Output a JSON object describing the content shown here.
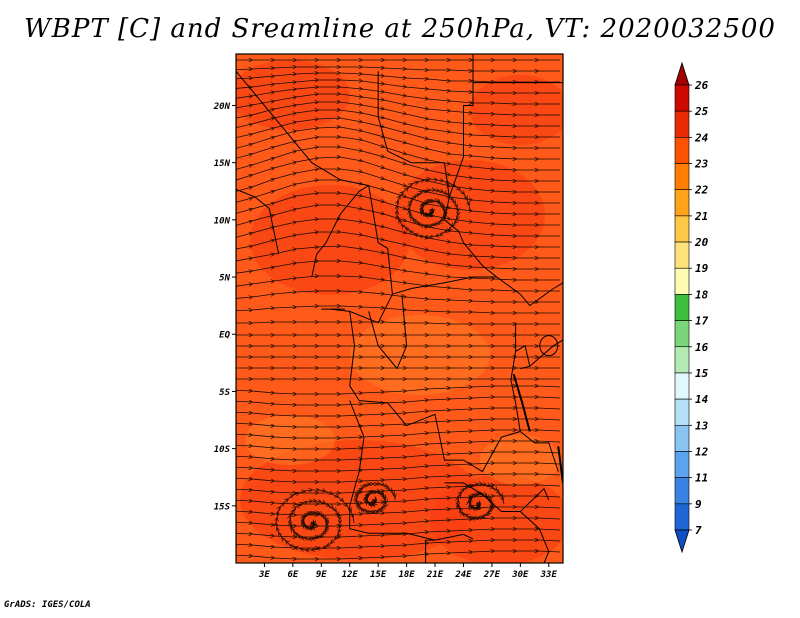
{
  "title": "WBPT [C] and Sreamline at 250hPa, VT: 2020032500",
  "credit": "GrADS: IGES/COLA",
  "map": {
    "lat_labels": [
      {
        "label": "20N",
        "lat": 20
      },
      {
        "label": "15N",
        "lat": 15
      },
      {
        "label": "10N",
        "lat": 10
      },
      {
        "label": "5N",
        "lat": 5
      },
      {
        "label": "EQ",
        "lat": 0
      },
      {
        "label": "5S",
        "lat": -5
      },
      {
        "label": "10S",
        "lat": -10
      },
      {
        "label": "15S",
        "lat": -15
      }
    ],
    "lon_labels": [
      {
        "label": "3E",
        "lon": 3
      },
      {
        "label": "6E",
        "lon": 6
      },
      {
        "label": "9E",
        "lon": 9
      },
      {
        "label": "12E",
        "lon": 12
      },
      {
        "label": "15E",
        "lon": 15
      },
      {
        "label": "18E",
        "lon": 18
      },
      {
        "label": "21E",
        "lon": 21
      },
      {
        "label": "24E",
        "lon": 24
      },
      {
        "label": "27E",
        "lon": 27
      },
      {
        "label": "30E",
        "lon": 30
      },
      {
        "label": "33E",
        "lon": 33
      }
    ],
    "lon_range": [
      0,
      34.5
    ],
    "lat_range": [
      -20,
      24.5
    ],
    "field_colors": {
      "background": "#ff5a1a",
      "warm": "#f53a12",
      "cool": "#ff7a24"
    }
  },
  "colorbar": {
    "levels": [
      "26",
      "25",
      "24",
      "23",
      "22",
      "21",
      "20",
      "19",
      "18",
      "17",
      "16",
      "15",
      "14",
      "13",
      "12",
      "11",
      "9",
      "7"
    ],
    "colors": [
      "#a50000",
      "#cd0a00",
      "#ea2a00",
      "#ff5200",
      "#ff7e00",
      "#ffa31a",
      "#ffc745",
      "#ffe27a",
      "#fffbb0",
      "#3cbf3c",
      "#7ad67a",
      "#b4ebb4",
      "#e0f7fb",
      "#b4e0f7",
      "#8ac4f2",
      "#5ba3ee",
      "#3a83e4",
      "#1e66d6",
      "#0e4fc4"
    ]
  }
}
